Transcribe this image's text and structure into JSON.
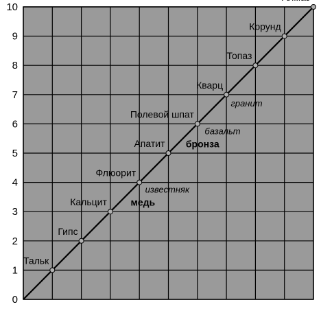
{
  "chart_data": {
    "type": "line",
    "title": "",
    "xlabel": "",
    "ylabel": "",
    "xlim": [
      0,
      10
    ],
    "ylim": [
      0,
      10
    ],
    "grid": true,
    "y_ticks": [
      "0",
      "1",
      "2",
      "3",
      "4",
      "5",
      "6",
      "7",
      "8",
      "9",
      "10"
    ],
    "background_color": "#9a9a9a",
    "grid_color": "#000000",
    "marker_color": "#b0b0b0",
    "minerals": [
      {
        "label": "Тальк",
        "x": 1,
        "y": 1
      },
      {
        "label": "Гипс",
        "x": 2,
        "y": 2
      },
      {
        "label": "Кальцит",
        "x": 3,
        "y": 3
      },
      {
        "label": "Флюорит",
        "x": 4,
        "y": 4
      },
      {
        "label": "Апатит",
        "x": 5,
        "y": 5
      },
      {
        "label": "Полевой шпат",
        "x": 6,
        "y": 6
      },
      {
        "label": "Кварц",
        "x": 7,
        "y": 7
      },
      {
        "label": "Топаз",
        "x": 8,
        "y": 8
      },
      {
        "label": "Корунд",
        "x": 9,
        "y": 9
      },
      {
        "label": "Алмаз",
        "x": 10,
        "y": 10
      }
    ],
    "annotations": [
      {
        "text": "известняк",
        "x": 4.2,
        "y": 3.65,
        "style": "italic"
      },
      {
        "text": "медь",
        "x": 3.7,
        "y": 3.2,
        "style": "bold"
      },
      {
        "text": "базальт",
        "x": 6.25,
        "y": 5.65,
        "style": "italic"
      },
      {
        "text": "бронза",
        "x": 5.6,
        "y": 5.2,
        "style": "bold"
      },
      {
        "text": "гранит",
        "x": 7.15,
        "y": 6.6,
        "style": "italic"
      }
    ]
  }
}
